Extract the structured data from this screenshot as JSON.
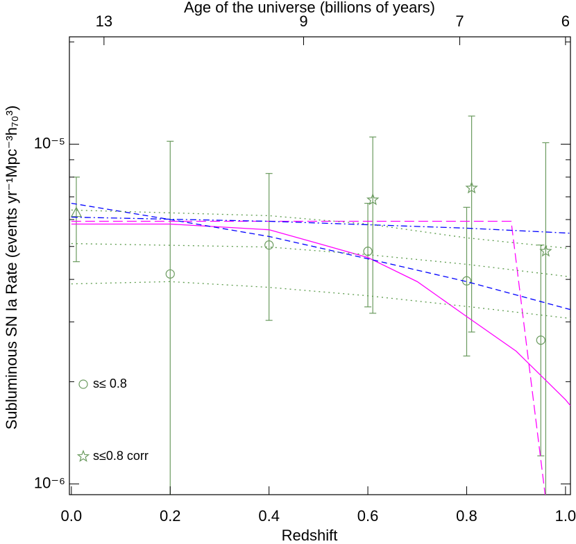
{
  "chart_data": {
    "type": "scatter",
    "xlabel": "Redshift",
    "ylabel": "Subluminous SN Ia Rate (events yr⁻¹Mpc⁻³h₇₀³)",
    "x2label": "Age of the universe (billions of years)",
    "xlim": [
      -0.004,
      1.01
    ],
    "ylim": [
      9.3e-07,
      2.07e-05
    ],
    "ylog": true,
    "xticks": [
      {
        "value": 0,
        "label": "0.0"
      },
      0.2,
      0.4,
      0.6,
      0.8,
      {
        "value": 1,
        "label": "1.0"
      }
    ],
    "yticks": [
      {
        "value": 1e-06,
        "label": "10⁻⁶"
      },
      {
        "value": 1e-05,
        "label": "10⁻⁵"
      }
    ],
    "yminorticks": [
      2e-06,
      3e-06,
      4e-06,
      5e-06,
      6e-06,
      7e-06,
      8e-06,
      9e-06,
      2e-05
    ],
    "x2ticks": [
      {
        "value": 0.066,
        "label": "13"
      },
      {
        "value": 0.47,
        "label": "9"
      },
      {
        "value": 0.786,
        "label": "7"
      },
      {
        "value": 1.0,
        "label": "6"
      }
    ],
    "legend": "lower left",
    "series": [
      {
        "name": "s≤ 0.8",
        "marker": "circle",
        "color": "#6a9a5e",
        "x": [
          0.2,
          0.4,
          0.6,
          0.8,
          0.95
        ],
        "values": [
          4.15e-06,
          5.05e-06,
          4.84e-06,
          3.96e-06,
          2.65e-06
        ],
        "err_low": [
          9e-07,
          3.03e-06,
          3.32e-06,
          2.38e-06,
          1.21e-06
        ],
        "err_high": [
          1.02e-05,
          8.2e-06,
          6.7e-06,
          6.52e-06,
          5.05e-06
        ]
      },
      {
        "name": "s≤0.8 corr",
        "marker": "star",
        "color": "#6a9a5e",
        "x": [
          0.61,
          0.81,
          0.96
        ],
        "values": [
          6.86e-06,
          7.43e-06,
          4.84e-06
        ],
        "err_low": [
          3.18e-06,
          2.8e-06,
          9e-07
        ],
        "err_high": [
          1.05e-05,
          1.21e-05,
          1.01e-05
        ]
      },
      {
        "marker": "triangle",
        "color": "#6a9a5e",
        "x": [
          0.01
        ],
        "values": [
          6.27e-06
        ],
        "err_low": [
          4.51e-06
        ],
        "err_high": [
          8e-06
        ]
      },
      {
        "linestyle": "solid",
        "color": "#ff00ff",
        "x": [
          0,
          0.2,
          0.4,
          0.5,
          0.6,
          0.7,
          0.8,
          0.9,
          1.0,
          1.01
        ],
        "values": [
          5.82e-06,
          5.82e-06,
          5.6e-06,
          5.1e-06,
          4.64e-06,
          3.94e-06,
          3.11e-06,
          2.46e-06,
          1.77e-06,
          1.7e-06
        ]
      },
      {
        "linestyle": "longdash",
        "color": "#ff00ff",
        "x": [
          0,
          0.89,
          0.96
        ],
        "values": [
          5.93e-06,
          5.93e-06,
          9e-07
        ]
      },
      {
        "linestyle": "dashed",
        "color": "#0000ff",
        "x": [
          0,
          0.2,
          0.4,
          0.6,
          0.8,
          1.01
        ],
        "values": [
          6.7e-06,
          6e-06,
          5.35e-06,
          4.6e-06,
          3.94e-06,
          3.26e-06
        ]
      },
      {
        "linestyle": "dashdot",
        "color": "#0000ff",
        "x": [
          0,
          0.4,
          0.8,
          1.01
        ],
        "values": [
          6.1e-06,
          5.93e-06,
          5.66e-06,
          5.47e-06
        ]
      },
      {
        "linestyle": "dotted",
        "color": "#5a9a4a",
        "x": [
          0,
          0.4,
          0.6,
          0.8,
          1.01
        ],
        "values": [
          6.4e-06,
          6.16e-06,
          5.82e-06,
          5.3e-06,
          4.93e-06
        ]
      },
      {
        "linestyle": "dotted",
        "color": "#5a9a4a",
        "x": [
          0,
          0.4,
          0.6,
          0.8,
          1.01
        ],
        "values": [
          5.1e-06,
          4.98e-06,
          4.73e-06,
          4.43e-06,
          4.07e-06
        ]
      },
      {
        "linestyle": "dotted",
        "color": "#5a9a4a",
        "x": [
          0,
          0.2,
          0.4,
          0.6,
          0.8,
          1.01
        ],
        "values": [
          3.88e-06,
          3.94e-06,
          3.79e-06,
          3.58e-06,
          3.33e-06,
          3.07e-06
        ]
      }
    ]
  }
}
